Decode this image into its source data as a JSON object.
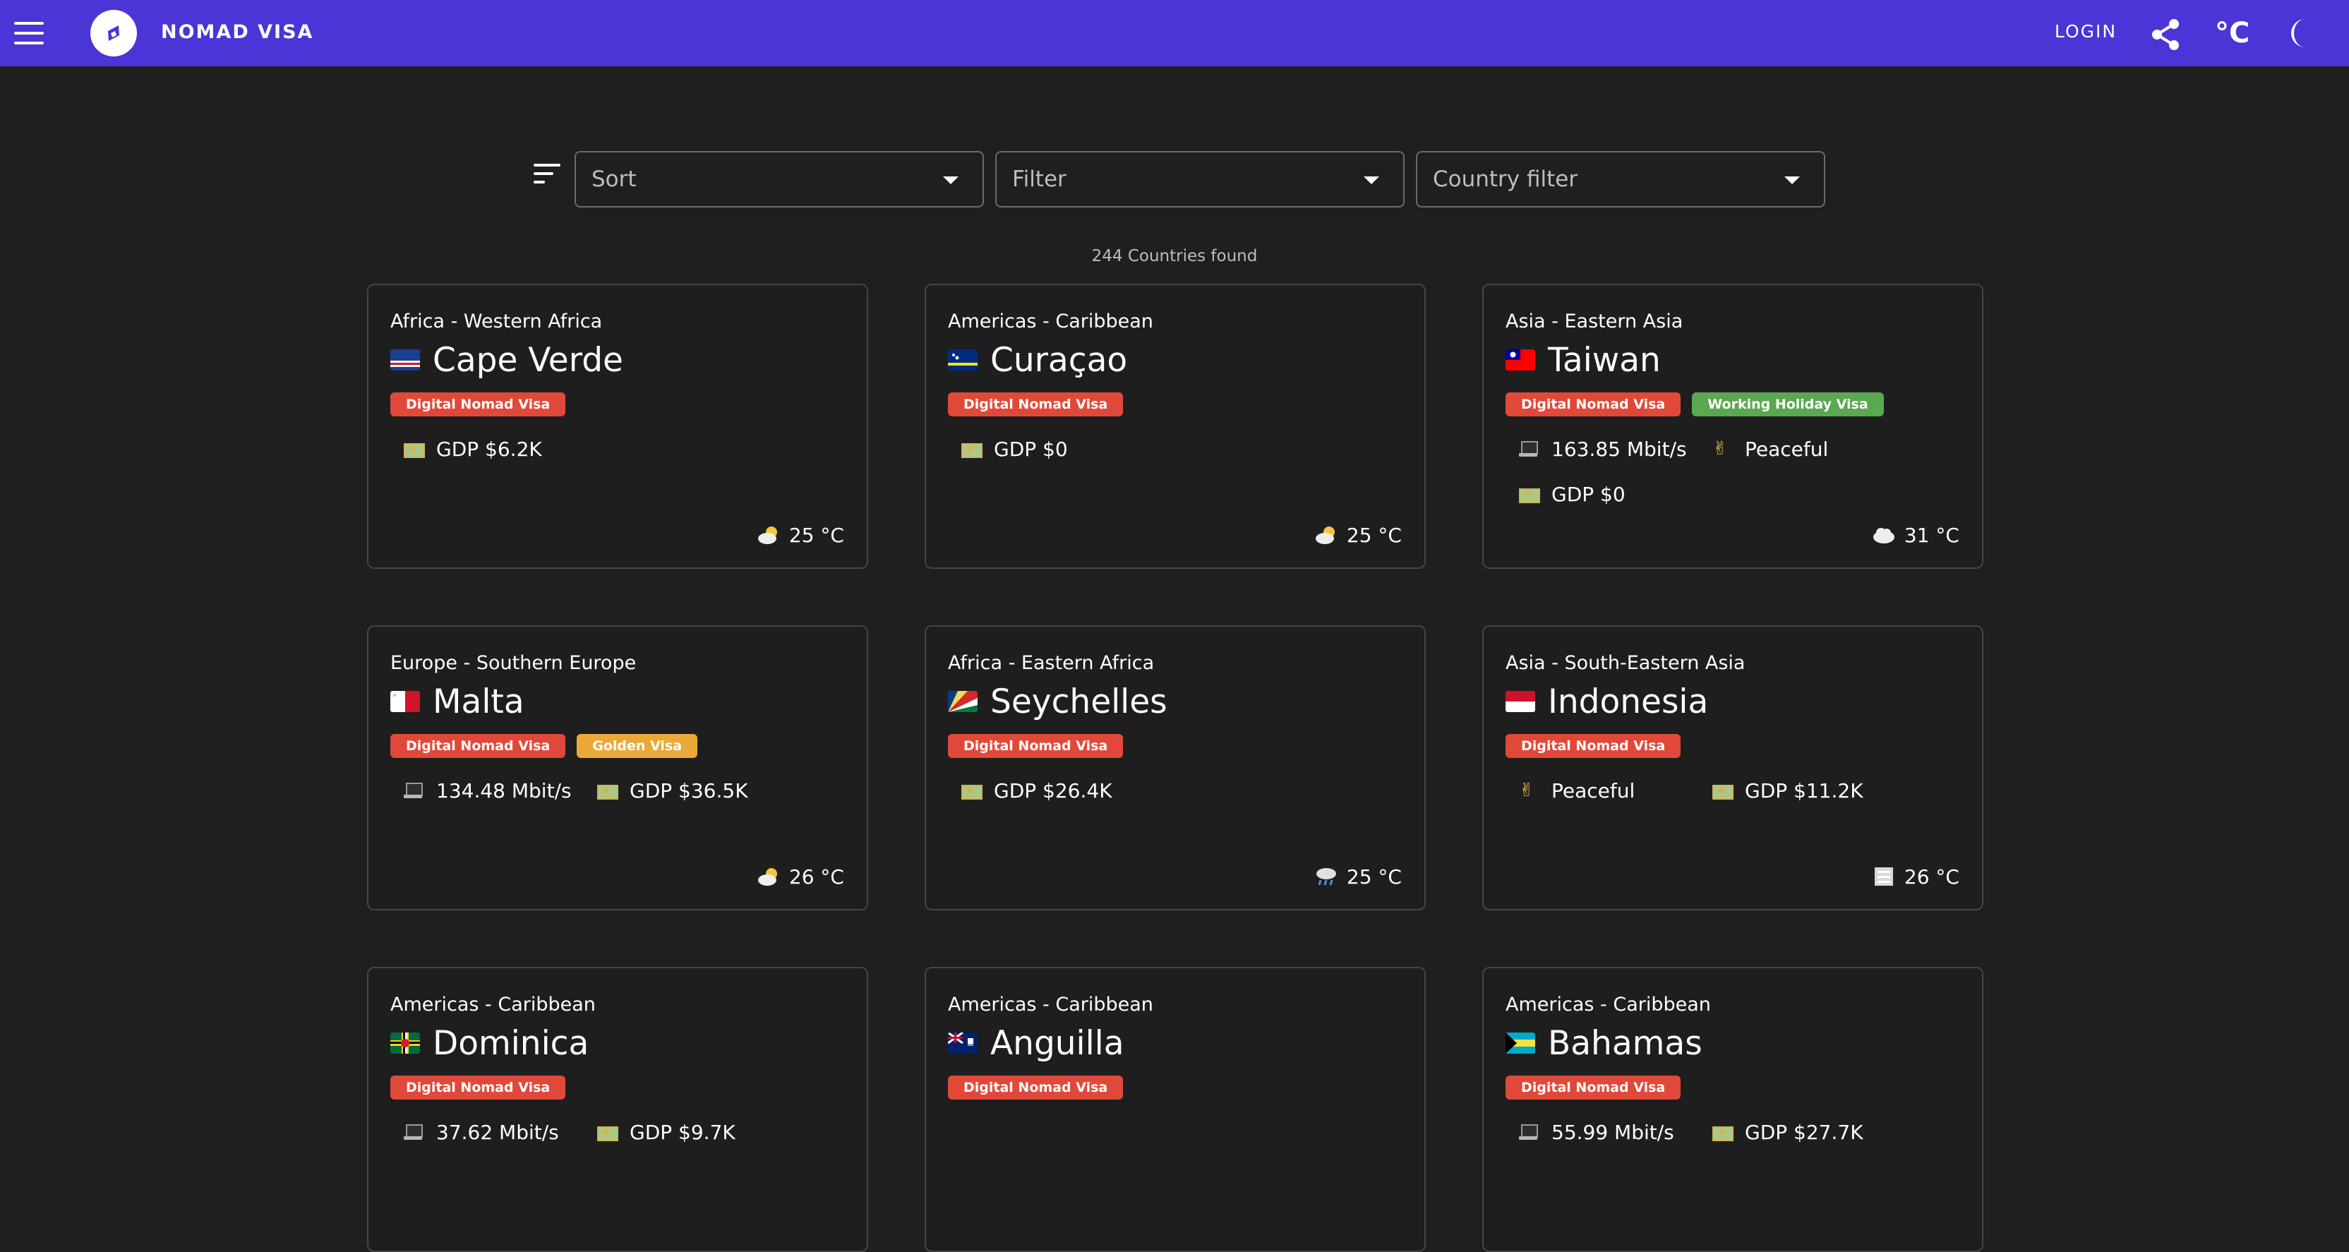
{
  "app": {
    "title": "NOMAD VISA",
    "login_label": "LOGIN",
    "temp_unit_label": "°C"
  },
  "filters": {
    "sort_placeholder": "Sort",
    "filter_placeholder": "Filter",
    "country_filter_placeholder": "Country filter"
  },
  "results_count": "244 Countries found",
  "colors": {
    "appbar": "#4b35d6",
    "digital_nomad_badge": "#e0493a",
    "working_holiday_badge": "#5aa851",
    "golden_badge": "#ebaa37",
    "background": "#1f1f1f"
  },
  "cards": [
    {
      "region": "Africa - Western Africa",
      "name": "Cape Verde",
      "flag": "cape-verde-flag-icon",
      "badges": [
        "Digital Nomad Visa"
      ],
      "stats": [
        {
          "icon": "money-icon",
          "text": "GDP $6.2K"
        }
      ],
      "weather_icon": "sun-behind-cloud-icon",
      "temperature": "25 °C"
    },
    {
      "region": "Americas - Caribbean",
      "name": "Curaçao",
      "flag": "curacao-flag-icon",
      "badges": [
        "Digital Nomad Visa"
      ],
      "stats": [
        {
          "icon": "money-icon",
          "text": "GDP $0"
        }
      ],
      "weather_icon": "sun-behind-cloud-icon",
      "temperature": "25 °C"
    },
    {
      "region": "Asia - Eastern Asia",
      "name": "Taiwan",
      "flag": "taiwan-flag-icon",
      "badges": [
        "Digital Nomad Visa",
        "Working Holiday Visa"
      ],
      "stats": [
        {
          "icon": "laptop-icon",
          "text": "163.85 Mbit/s"
        },
        {
          "icon": "peace-icon",
          "text": "Peaceful"
        },
        {
          "icon": "money-icon",
          "text": "GDP $0"
        }
      ],
      "weather_icon": "cloud-icon",
      "temperature": "31 °C"
    },
    {
      "region": "Europe - Southern Europe",
      "name": "Malta",
      "flag": "malta-flag-icon",
      "badges": [
        "Digital Nomad Visa",
        "Golden Visa"
      ],
      "stats": [
        {
          "icon": "laptop-icon",
          "text": "134.48 Mbit/s"
        },
        {
          "icon": "money-icon",
          "text": "GDP $36.5K"
        }
      ],
      "weather_icon": "sun-behind-cloud-icon",
      "temperature": "26 °C"
    },
    {
      "region": "Africa - Eastern Africa",
      "name": "Seychelles",
      "flag": "seychelles-flag-icon",
      "badges": [
        "Digital Nomad Visa"
      ],
      "stats": [
        {
          "icon": "money-icon",
          "text": "GDP $26.4K"
        }
      ],
      "weather_icon": "rain-cloud-icon",
      "temperature": "25 °C"
    },
    {
      "region": "Asia - South-Eastern Asia",
      "name": "Indonesia",
      "flag": "indonesia-flag-icon",
      "badges": [
        "Digital Nomad Visa"
      ],
      "stats": [
        {
          "icon": "peace-icon",
          "text": "Peaceful"
        },
        {
          "icon": "money-icon",
          "text": "GDP $11.2K"
        }
      ],
      "weather_icon": "fog-icon",
      "temperature": "26 °C"
    },
    {
      "region": "Americas - Caribbean",
      "name": "Dominica",
      "flag": "dominica-flag-icon",
      "badges": [
        "Digital Nomad Visa"
      ],
      "stats": [
        {
          "icon": "laptop-icon",
          "text": "37.62 Mbit/s"
        },
        {
          "icon": "money-icon",
          "text": "GDP $9.7K"
        }
      ],
      "weather_icon": "",
      "temperature": ""
    },
    {
      "region": "Americas - Caribbean",
      "name": "Anguilla",
      "flag": "anguilla-flag-icon",
      "badges": [
        "Digital Nomad Visa"
      ],
      "stats": [],
      "weather_icon": "",
      "temperature": ""
    },
    {
      "region": "Americas - Caribbean",
      "name": "Bahamas",
      "flag": "bahamas-flag-icon",
      "badges": [
        "Digital Nomad Visa"
      ],
      "stats": [
        {
          "icon": "laptop-icon",
          "text": "55.99 Mbit/s"
        },
        {
          "icon": "money-icon",
          "text": "GDP $27.7K"
        }
      ],
      "weather_icon": "",
      "temperature": ""
    }
  ]
}
